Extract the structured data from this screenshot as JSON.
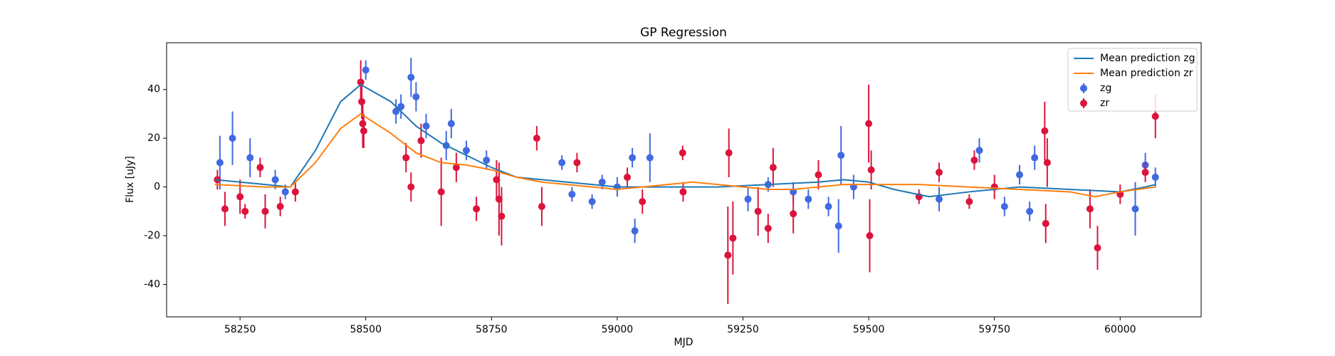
{
  "chart_data": {
    "type": "errorbar",
    "title": "GP Regression",
    "x_label": "MJD",
    "y_label": "Flux [uJy]",
    "xlim": [
      58104,
      60161
    ],
    "ylim": [
      -53.3,
      59.2
    ],
    "xticks": [
      58250,
      58500,
      58750,
      59000,
      59250,
      59500,
      59750,
      60000
    ],
    "yticks": [
      -40,
      -20,
      0,
      20,
      40
    ],
    "legend": "upper right",
    "series": [
      {
        "name": "Mean prediction zg",
        "type": "line",
        "color": "#1f77b4",
        "x": [
          58200,
          58300,
          58350,
          58400,
          58450,
          58490,
          58550,
          58600,
          58650,
          58700,
          58750,
          58800,
          58850,
          58900,
          58950,
          59000,
          59100,
          59200,
          59300,
          59400,
          59450,
          59500,
          59550,
          59620,
          59700,
          59800,
          59900,
          60000,
          60050,
          60070
        ],
        "values": [
          3,
          1,
          0,
          15,
          35,
          42,
          35,
          25,
          18,
          13,
          8,
          4,
          3,
          2,
          1,
          0,
          0,
          0,
          1,
          2,
          3,
          2,
          -1,
          -4,
          -2,
          0,
          -1,
          -2,
          0,
          1
        ]
      },
      {
        "name": "Mean prediction zr",
        "type": "line",
        "color": "#ff7f0e",
        "x": [
          58200,
          58300,
          58350,
          58400,
          58450,
          58490,
          58550,
          58600,
          58650,
          58700,
          58750,
          58800,
          58850,
          58900,
          58950,
          59000,
          59050,
          59100,
          59150,
          59200,
          59250,
          59300,
          59350,
          59400,
          59450,
          59500,
          59600,
          59700,
          59800,
          59900,
          59950,
          60000,
          60070
        ],
        "values": [
          1,
          0,
          0,
          10,
          24,
          30,
          22,
          14,
          10,
          9,
          7,
          4,
          2,
          1,
          0,
          -1,
          0,
          1,
          2,
          1,
          0,
          -1,
          -1,
          0,
          1,
          1,
          1,
          0,
          -1,
          -2,
          -4,
          -2,
          0
        ]
      },
      {
        "name": "zg",
        "type": "errorbar",
        "color": "#4169e1",
        "x": [
          58210,
          58235,
          58270,
          58320,
          58340,
          58500,
          58560,
          58570,
          58590,
          58600,
          58620,
          58660,
          58670,
          58700,
          58740,
          58890,
          58910,
          58950,
          58970,
          59000,
          59030,
          59035,
          59065,
          59260,
          59300,
          59350,
          59380,
          59420,
          59440,
          59445,
          59470,
          59640,
          59720,
          59770,
          59800,
          59820,
          59830,
          60030,
          60050,
          60070
        ],
        "values": [
          10,
          20,
          12,
          3,
          -2,
          48,
          31,
          33,
          45,
          37,
          25,
          17,
          26,
          15,
          11,
          10,
          -3,
          -6,
          2,
          0,
          12,
          -18,
          12,
          -5,
          1,
          -2,
          -5,
          -8,
          -16,
          13,
          0,
          -5,
          15,
          -8,
          5,
          -10,
          12,
          -9,
          9,
          4
        ],
        "errors": [
          11,
          11,
          8,
          4,
          3,
          4,
          5,
          5,
          8,
          6,
          5,
          6,
          6,
          4,
          4,
          3,
          3,
          3,
          3,
          4,
          4,
          5,
          10,
          5,
          3,
          4,
          4,
          4,
          11,
          12,
          5,
          5,
          5,
          4,
          4,
          4,
          5,
          11,
          5,
          4
        ]
      },
      {
        "name": "zr",
        "type": "errorbar",
        "color": "#dc143c",
        "x": [
          58205,
          58220,
          58250,
          58260,
          58290,
          58300,
          58330,
          58360,
          58490,
          58492,
          58494,
          58496,
          58580,
          58590,
          58610,
          58650,
          58680,
          58720,
          58760,
          58765,
          58770,
          58840,
          58850,
          58920,
          59020,
          59050,
          59130,
          59131,
          59220,
          59222,
          59230,
          59280,
          59300,
          59310,
          59350,
          59400,
          59500,
          59502,
          59505,
          59600,
          59640,
          59700,
          59710,
          59750,
          59850,
          59852,
          59855,
          59940,
          59955,
          60000,
          60050,
          60070
        ],
        "values": [
          3,
          -9,
          -4,
          -10,
          8,
          -10,
          -8,
          -2,
          43,
          35,
          26,
          23,
          12,
          0,
          19,
          -2,
          8,
          -9,
          3,
          -5,
          -12,
          20,
          -8,
          10,
          4,
          -6,
          14,
          -2,
          -28,
          14,
          -21,
          -10,
          -17,
          8,
          -11,
          5,
          26,
          -20,
          7,
          -4,
          6,
          -6,
          11,
          0,
          23,
          -15,
          10,
          -9,
          -25,
          -3,
          6,
          29
        ],
        "errors": [
          4,
          7,
          7,
          3,
          4,
          7,
          4,
          4,
          9,
          7,
          10,
          7,
          6,
          6,
          7,
          14,
          6,
          5,
          8,
          15,
          12,
          5,
          8,
          4,
          4,
          5,
          3,
          4,
          20,
          10,
          15,
          10,
          6,
          8,
          8,
          6,
          16,
          15,
          8,
          3,
          4,
          3,
          4,
          5,
          12,
          8,
          10,
          8,
          9,
          4,
          4,
          9
        ]
      }
    ]
  }
}
